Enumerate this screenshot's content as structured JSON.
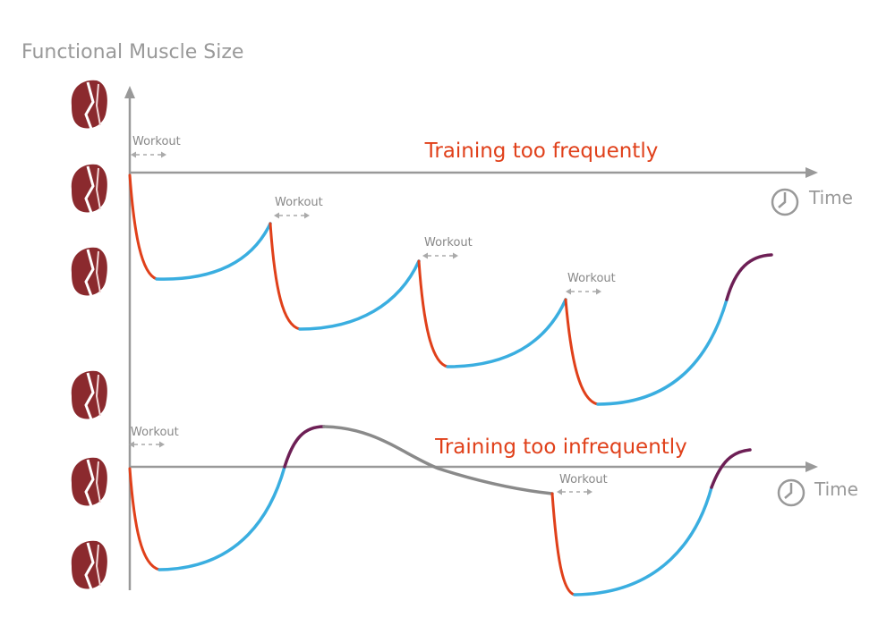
{
  "title": "Functional Muscle Size",
  "panels": [
    {
      "heading": "Training too frequently",
      "axis_label": "Time",
      "workouts": [
        "Workout",
        "Workout",
        "Workout",
        "Workout"
      ]
    },
    {
      "heading": "Training too infrequently",
      "axis_label": "Time",
      "workouts": [
        "Workout",
        "Workout"
      ]
    }
  ]
}
